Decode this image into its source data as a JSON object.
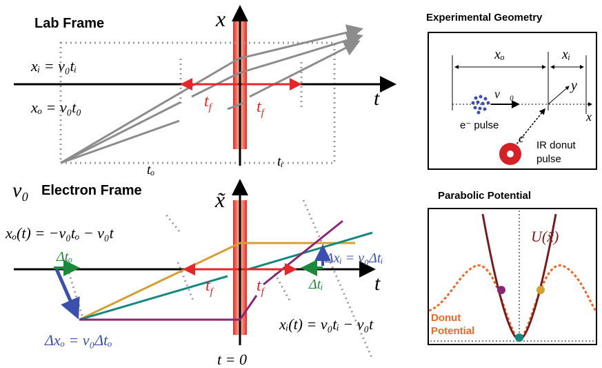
{
  "lab_frame": {
    "title": "Lab Frame",
    "x_axis": "x",
    "t_axis": "t",
    "xi_eq": "xᵢ = v₀tᵢ",
    "xo_eq": "xₒ = v₀t₀",
    "tf_left": {
      "base": "t",
      "sub": "f"
    },
    "tf_right": {
      "base": "t",
      "sub": "f"
    },
    "to": "tₒ",
    "ti": "tᵢ"
  },
  "electron_frame": {
    "title_symbol": "v₀",
    "title": "Electron Frame",
    "x_axis": "x̃",
    "t_axis": "t",
    "xo_eq": "xₒ(t) = −v₀tₒ − v₀t",
    "dto": "Δtₒ",
    "dxi_eq": "Δxᵢ = v₀Δtᵢ",
    "dti": "Δtᵢ",
    "xi_eq": "xᵢ(t) = v₀tᵢ − v₀t",
    "dxo_eq": "Δxₒ = v₀Δtₒ",
    "t_zero": "t = 0",
    "tf_left": {
      "base": "t",
      "sub": "f"
    },
    "tf_right": {
      "base": "t",
      "sub": "f"
    }
  },
  "geometry": {
    "title": "Experimental Geometry",
    "xo": "xₒ",
    "xi": "xᵢ",
    "v0": "v⃗₀",
    "y": "y",
    "x": "x",
    "e_pulse": "e⁻ pulse",
    "c": "c",
    "ir_line1": "IR donut",
    "ir_line2": "pulse"
  },
  "potential": {
    "title": "Parabolic Potential",
    "u_label": "U(x̃)",
    "donut_line1": "Donut",
    "donut_line2": "Potential"
  }
}
